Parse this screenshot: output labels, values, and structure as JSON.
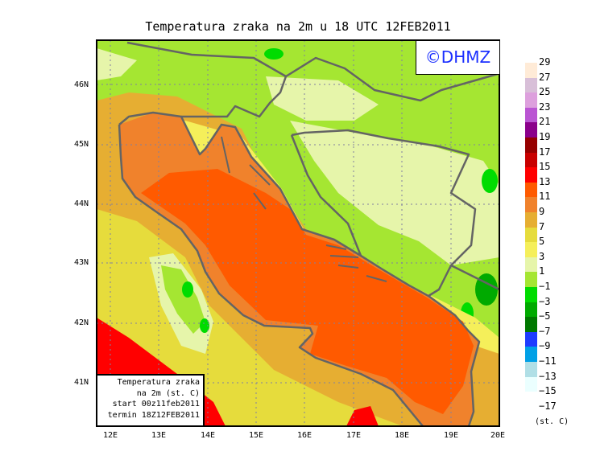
{
  "title": "Temperatura zraka na 2m u 18 UTC 12FEB2011",
  "logo": "©DHMZ",
  "info": [
    "Temperatura zraka",
    "na 2m (st. C)",
    "start 00z11feb2011",
    "termin 18Z12FEB2011"
  ],
  "lat_ticks": [
    "46N",
    "45N",
    "44N",
    "43N",
    "42N",
    "41N"
  ],
  "lon_ticks": [
    "12E",
    "13E",
    "14E",
    "15E",
    "16E",
    "17E",
    "18E",
    "19E",
    "20E"
  ],
  "legend": {
    "units": "(st. C)",
    "levels": [
      "29",
      "27",
      "25",
      "23",
      "21",
      "19",
      "17",
      "15",
      "13",
      "11",
      "9",
      "7",
      "5",
      "3",
      "1",
      "−1",
      "−3",
      "−5",
      "−7",
      "−9",
      "−11",
      "−13",
      "−15",
      "−17"
    ],
    "colors": [
      "#ffebd7",
      "#d8bfd8",
      "#dda0dd",
      "#ba55d3",
      "#8b008b",
      "#960000",
      "#c80000",
      "#ff0000",
      "#ff5a00",
      "#f0822c",
      "#e6ae32",
      "#e6dc3c",
      "#f5ef5a",
      "#e6f5aa",
      "#a5e632",
      "#00dc00",
      "#00aa00",
      "#007800",
      "#1e3cff",
      "#00a0e6",
      "#b0dfe6",
      "#ebffff"
    ]
  },
  "colors": {
    "sea_inner": "#ff5a00",
    "sea_margin": "#f0822c",
    "coast": "#646464",
    "grid": "#8080a0"
  }
}
